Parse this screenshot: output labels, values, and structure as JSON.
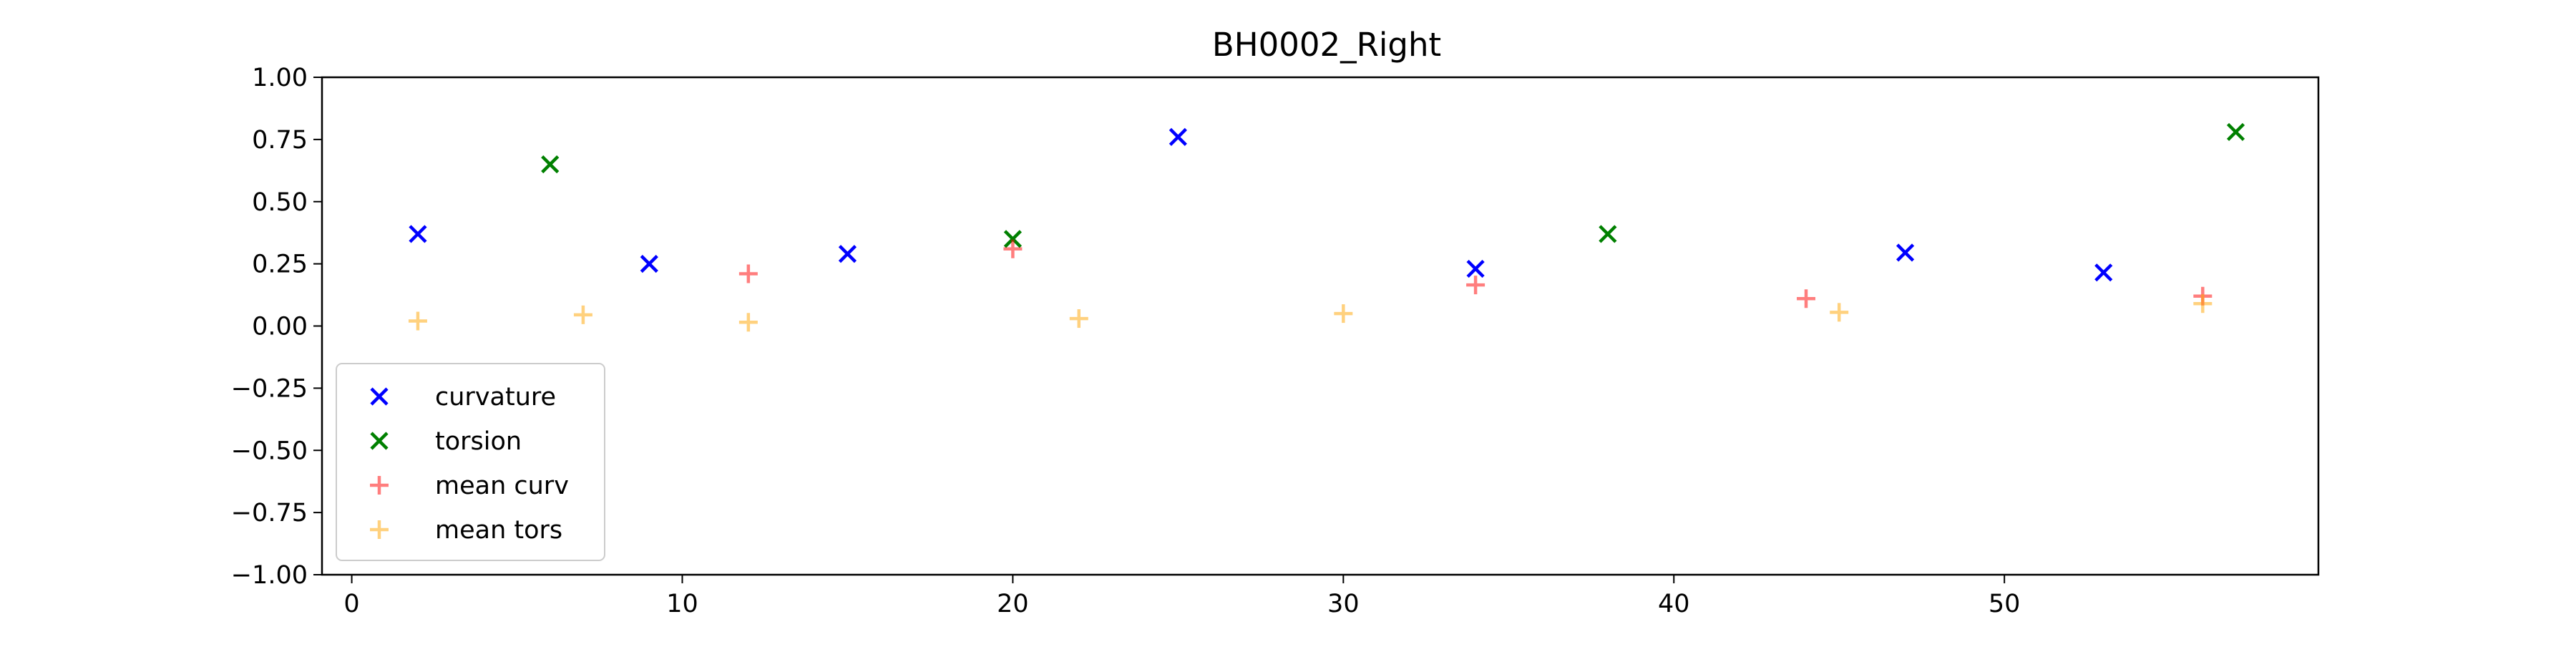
{
  "chart_data": {
    "type": "scatter",
    "title": "BH0002_Right",
    "xlabel": "",
    "ylabel": "",
    "xlim": [
      -0.9,
      59.5
    ],
    "ylim": [
      -1.0,
      1.0
    ],
    "xticks": [
      0,
      10,
      20,
      30,
      40,
      50
    ],
    "xtick_labels": [
      "0",
      "10",
      "20",
      "30",
      "40",
      "50"
    ],
    "yticks": [
      1.0,
      0.75,
      0.5,
      0.25,
      0.0,
      -0.25,
      -0.5,
      -0.75,
      -1.0
    ],
    "ytick_labels": [
      "1.00",
      "0.75",
      "0.50",
      "0.25",
      "0.00",
      "−0.25",
      "−0.50",
      "−0.75",
      "−1.00"
    ],
    "grid": false,
    "legend_position": "lower-left",
    "series": [
      {
        "name": "curvature",
        "marker": "x",
        "color": "#0000ff",
        "opacity": 1.0,
        "points": [
          [
            2,
            0.37
          ],
          [
            9,
            0.25
          ],
          [
            15,
            0.29
          ],
          [
            25,
            0.76
          ],
          [
            34,
            0.23
          ],
          [
            47,
            0.295
          ],
          [
            53,
            0.215
          ]
        ]
      },
      {
        "name": "torsion",
        "marker": "x",
        "color": "#008000",
        "opacity": 1.0,
        "points": [
          [
            6,
            0.65
          ],
          [
            20,
            0.35
          ],
          [
            38,
            0.37
          ],
          [
            57,
            0.78
          ]
        ]
      },
      {
        "name": "mean curv",
        "marker": "+",
        "color": "#ff0000",
        "opacity": 0.5,
        "points": [
          [
            12,
            0.21
          ],
          [
            20,
            0.31
          ],
          [
            34,
            0.165
          ],
          [
            44,
            0.11
          ],
          [
            56,
            0.12
          ]
        ]
      },
      {
        "name": "mean tors",
        "marker": "+",
        "color": "#ffa500",
        "opacity": 0.5,
        "points": [
          [
            2,
            0.02
          ],
          [
            7,
            0.045
          ],
          [
            12,
            0.015
          ],
          [
            22,
            0.03
          ],
          [
            30,
            0.05
          ],
          [
            45,
            0.055
          ],
          [
            56,
            0.09
          ]
        ]
      }
    ]
  }
}
